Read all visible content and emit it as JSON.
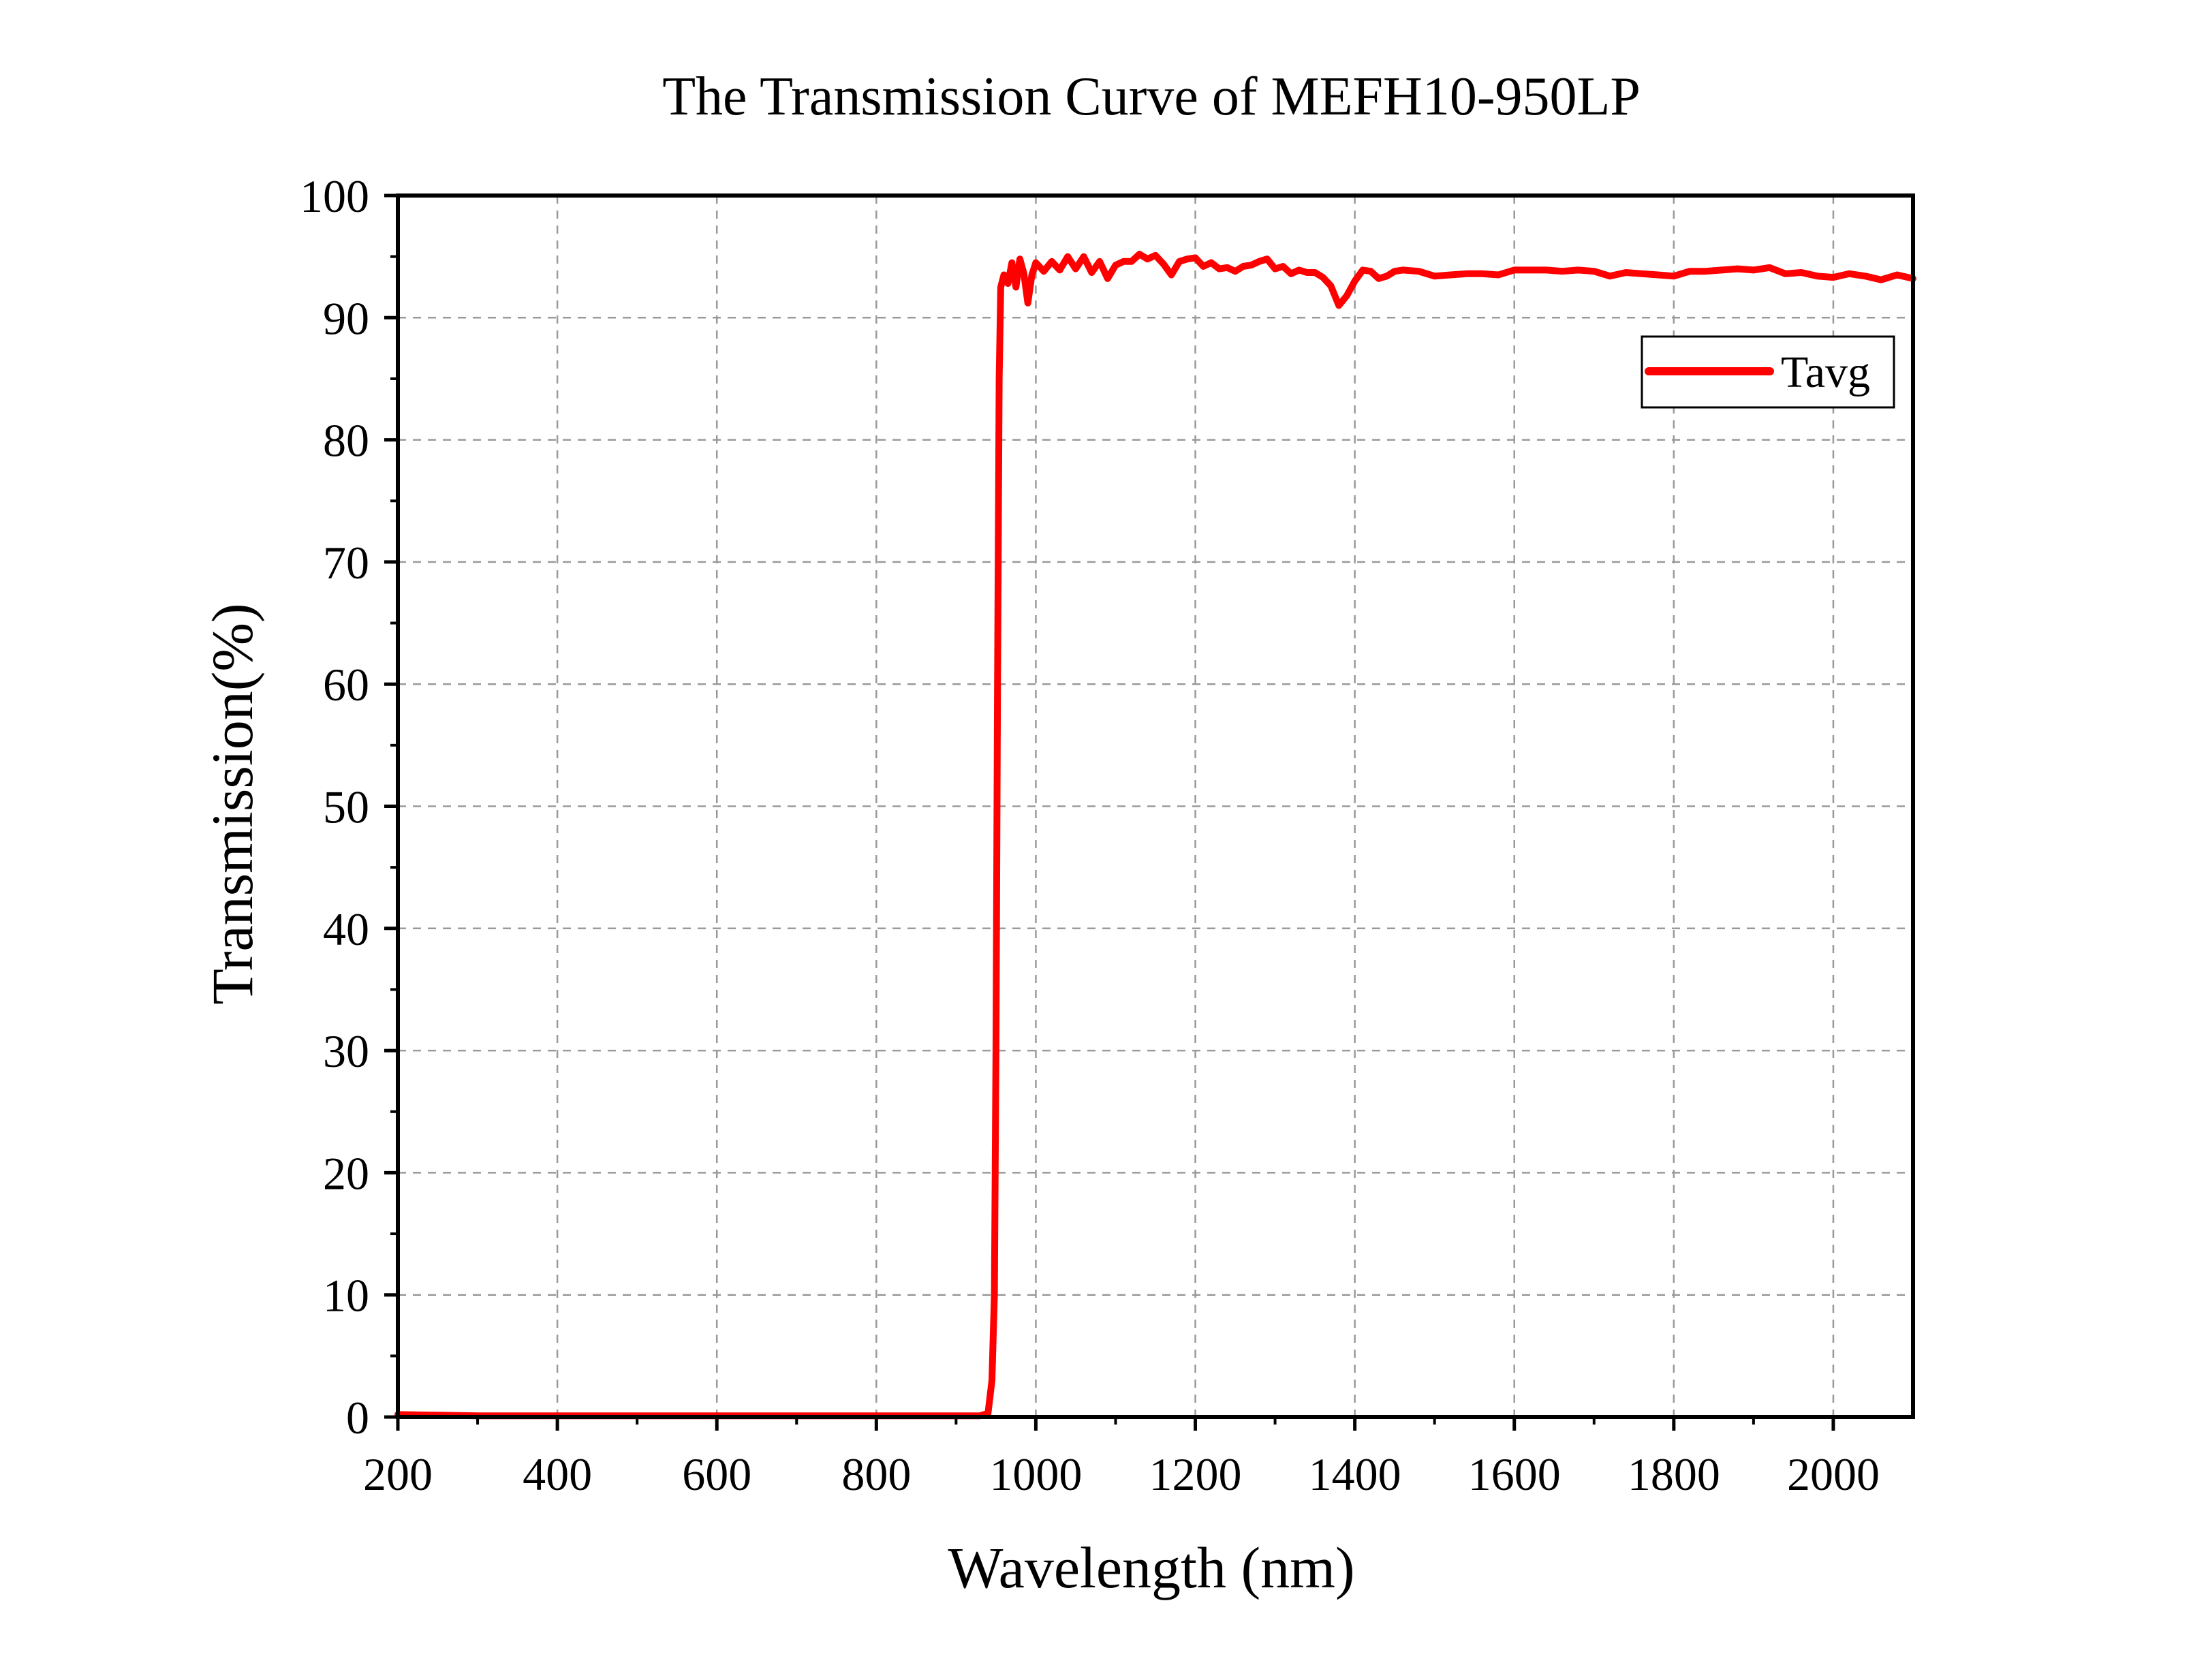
{
  "chart_data": {
    "type": "line",
    "title": "The Transmission Curve of MEFH10-950LP",
    "xlabel": "Wavelength (nm)",
    "ylabel": "Transmission(%)",
    "xlim": [
      200,
      2100
    ],
    "ylim": [
      0,
      100
    ],
    "x_ticks": [
      200,
      400,
      600,
      800,
      1000,
      1200,
      1400,
      1600,
      1800,
      2000
    ],
    "y_ticks": [
      0,
      10,
      20,
      30,
      40,
      50,
      60,
      70,
      80,
      90,
      100
    ],
    "grid": true,
    "legend_position": "top-right",
    "series": [
      {
        "name": "Tavg",
        "color": "#ff0000",
        "points": [
          [
            200,
            0.2
          ],
          [
            300,
            0.1
          ],
          [
            400,
            0.1
          ],
          [
            500,
            0.1
          ],
          [
            600,
            0.1
          ],
          [
            700,
            0.1
          ],
          [
            800,
            0.1
          ],
          [
            900,
            0.1
          ],
          [
            930,
            0.1
          ],
          [
            940,
            0.3
          ],
          [
            945,
            3
          ],
          [
            948,
            10
          ],
          [
            950,
            30
          ],
          [
            952,
            60
          ],
          [
            954,
            85
          ],
          [
            956,
            92.5
          ],
          [
            960,
            93.5
          ],
          [
            965,
            92.8
          ],
          [
            970,
            94.5
          ],
          [
            975,
            92.5
          ],
          [
            980,
            94.8
          ],
          [
            985,
            93.6
          ],
          [
            990,
            91.2
          ],
          [
            995,
            93.5
          ],
          [
            1000,
            94.5
          ],
          [
            1010,
            93.8
          ],
          [
            1020,
            94.6
          ],
          [
            1030,
            93.9
          ],
          [
            1040,
            95.0
          ],
          [
            1050,
            94.0
          ],
          [
            1060,
            95.0
          ],
          [
            1070,
            93.7
          ],
          [
            1080,
            94.6
          ],
          [
            1090,
            93.2
          ],
          [
            1100,
            94.3
          ],
          [
            1110,
            94.6
          ],
          [
            1120,
            94.6
          ],
          [
            1130,
            95.2
          ],
          [
            1140,
            94.8
          ],
          [
            1150,
            95.1
          ],
          [
            1160,
            94.4
          ],
          [
            1170,
            93.5
          ],
          [
            1180,
            94.6
          ],
          [
            1190,
            94.8
          ],
          [
            1200,
            94.9
          ],
          [
            1210,
            94.2
          ],
          [
            1220,
            94.5
          ],
          [
            1230,
            94.0
          ],
          [
            1240,
            94.1
          ],
          [
            1250,
            93.8
          ],
          [
            1260,
            94.2
          ],
          [
            1270,
            94.3
          ],
          [
            1280,
            94.6
          ],
          [
            1290,
            94.8
          ],
          [
            1300,
            94.0
          ],
          [
            1310,
            94.2
          ],
          [
            1320,
            93.6
          ],
          [
            1330,
            93.9
          ],
          [
            1340,
            93.7
          ],
          [
            1350,
            93.7
          ],
          [
            1360,
            93.3
          ],
          [
            1370,
            92.6
          ],
          [
            1380,
            91.0
          ],
          [
            1390,
            91.8
          ],
          [
            1400,
            93.0
          ],
          [
            1410,
            93.9
          ],
          [
            1420,
            93.8
          ],
          [
            1430,
            93.2
          ],
          [
            1440,
            93.4
          ],
          [
            1450,
            93.8
          ],
          [
            1460,
            93.9
          ],
          [
            1480,
            93.8
          ],
          [
            1500,
            93.4
          ],
          [
            1520,
            93.5
          ],
          [
            1540,
            93.6
          ],
          [
            1560,
            93.6
          ],
          [
            1580,
            93.5
          ],
          [
            1600,
            93.9
          ],
          [
            1620,
            93.9
          ],
          [
            1640,
            93.9
          ],
          [
            1660,
            93.8
          ],
          [
            1680,
            93.9
          ],
          [
            1700,
            93.8
          ],
          [
            1720,
            93.4
          ],
          [
            1740,
            93.7
          ],
          [
            1760,
            93.6
          ],
          [
            1780,
            93.5
          ],
          [
            1800,
            93.4
          ],
          [
            1820,
            93.8
          ],
          [
            1840,
            93.8
          ],
          [
            1860,
            93.9
          ],
          [
            1880,
            94.0
          ],
          [
            1900,
            93.9
          ],
          [
            1920,
            94.1
          ],
          [
            1940,
            93.6
          ],
          [
            1960,
            93.7
          ],
          [
            1980,
            93.4
          ],
          [
            2000,
            93.3
          ],
          [
            2020,
            93.6
          ],
          [
            2040,
            93.4
          ],
          [
            2060,
            93.1
          ],
          [
            2080,
            93.5
          ],
          [
            2100,
            93.2
          ]
        ]
      }
    ]
  }
}
